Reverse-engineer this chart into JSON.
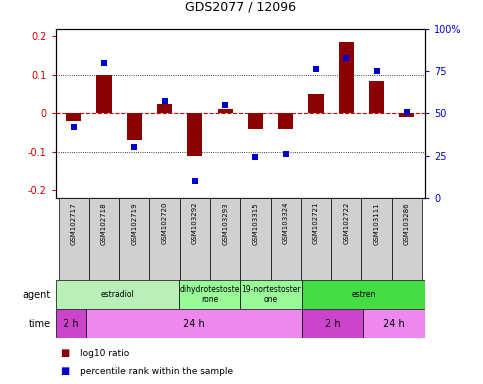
{
  "title": "GDS2077 / 12096",
  "samples": [
    "GSM102717",
    "GSM102718",
    "GSM102719",
    "GSM102720",
    "GSM103292",
    "GSM103293",
    "GSM103315",
    "GSM103324",
    "GSM102721",
    "GSM102722",
    "GSM103111",
    "GSM103286"
  ],
  "log10_ratio": [
    -0.02,
    0.1,
    -0.07,
    0.025,
    -0.11,
    0.01,
    -0.04,
    -0.04,
    0.05,
    0.185,
    0.085,
    -0.01
  ],
  "percentile_rank": [
    42,
    80,
    30,
    57,
    10,
    55,
    24,
    26,
    76,
    83,
    75,
    51
  ],
  "ylim": [
    -0.22,
    0.22
  ],
  "yticks": [
    -0.2,
    -0.1,
    0,
    0.1,
    0.2
  ],
  "ytick_labels_left": [
    "-0.2",
    "-0.1",
    "0",
    "0.1",
    "0.2"
  ],
  "ytick_labels_right": [
    "0",
    "25",
    "50",
    "75",
    "100%"
  ],
  "bar_color": "#8B0000",
  "dot_color": "#0000CD",
  "zero_line_color": "#cc0000",
  "agent_groups": [
    {
      "label": "estradiol",
      "start": 0,
      "end": 4,
      "color": "#b8f0b8"
    },
    {
      "label": "dihydrotestoste\nrone",
      "start": 4,
      "end": 6,
      "color": "#98FB98"
    },
    {
      "label": "19-nortestoster\none",
      "start": 6,
      "end": 8,
      "color": "#98FB98"
    },
    {
      "label": "estren",
      "start": 8,
      "end": 12,
      "color": "#44dd44"
    }
  ],
  "time_groups": [
    {
      "label": "2 h",
      "start": 0,
      "end": 1,
      "color": "#cc44cc"
    },
    {
      "label": "24 h",
      "start": 1,
      "end": 8,
      "color": "#ee88ee"
    },
    {
      "label": "2 h",
      "start": 8,
      "end": 10,
      "color": "#cc44cc"
    },
    {
      "label": "24 h",
      "start": 10,
      "end": 12,
      "color": "#ee88ee"
    }
  ],
  "legend_red": "log10 ratio",
  "legend_blue": "percentile rank within the sample",
  "left_axis_color": "#cc0000",
  "right_axis_color": "#0000CD",
  "label_bg": "#d0d0d0"
}
